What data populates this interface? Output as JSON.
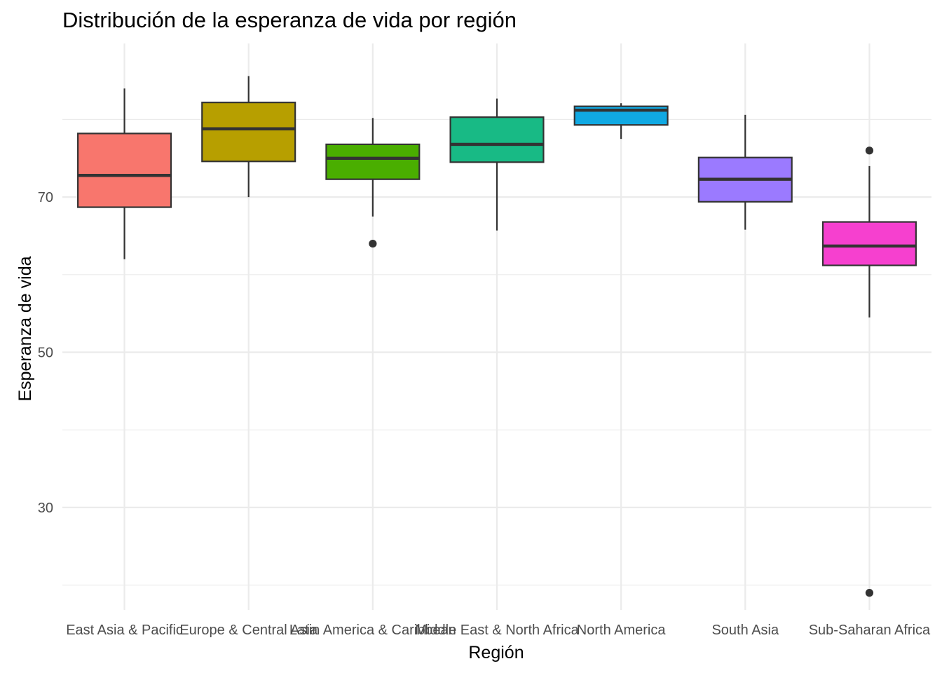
{
  "chart_data": {
    "type": "boxplot",
    "title": "Distribución de la esperanza de vida por región",
    "xlabel": "Región",
    "ylabel": "Esperanza de vida",
    "ylim": [
      16.8,
      89.8
    ],
    "yticks": [
      30,
      50,
      70
    ],
    "grid": true,
    "legend": "none",
    "categories": [
      "East Asia & Pacific",
      "Europe & Central Asia",
      "Latin America & Caribbean",
      "Middle East & North Africa",
      "North America",
      "South Asia",
      "Sub-Saharan Africa"
    ],
    "boxes": [
      {
        "whisker_low": 62.0,
        "q1": 68.7,
        "median": 72.8,
        "q3": 78.2,
        "whisker_high": 84.0,
        "outliers": [],
        "color": "#F8766D"
      },
      {
        "whisker_low": 70.0,
        "q1": 74.6,
        "median": 78.8,
        "q3": 82.2,
        "whisker_high": 85.6,
        "outliers": [],
        "color": "#B79F00"
      },
      {
        "whisker_low": 67.5,
        "q1": 72.3,
        "median": 75.0,
        "q3": 76.8,
        "whisker_high": 80.2,
        "outliers": [
          64.0
        ],
        "color": "#4AAE00"
      },
      {
        "whisker_low": 65.7,
        "q1": 74.5,
        "median": 76.8,
        "q3": 80.3,
        "whisker_high": 82.7,
        "outliers": [],
        "color": "#18BA85"
      },
      {
        "whisker_low": 77.5,
        "q1": 79.3,
        "median": 81.2,
        "q3": 81.7,
        "whisker_high": 82.1,
        "outliers": [],
        "color": "#10A9E3"
      },
      {
        "whisker_low": 65.8,
        "q1": 69.4,
        "median": 72.3,
        "q3": 75.1,
        "whisker_high": 80.6,
        "outliers": [],
        "color": "#9B7AFF"
      },
      {
        "whisker_low": 54.5,
        "q1": 61.2,
        "median": 63.7,
        "q3": 66.8,
        "whisker_high": 74.0,
        "outliers": [
          76.0,
          19.0
        ],
        "color": "#F640CF"
      }
    ]
  }
}
